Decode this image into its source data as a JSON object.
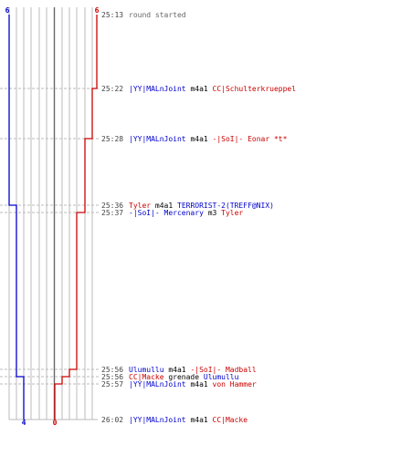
{
  "colors": {
    "team_blue": "#0000cc",
    "team_red": "#cc0000",
    "grid": "#bbbbbb",
    "center_line": "#666666",
    "dashed": "#bbbbbb",
    "time_text": "#444444"
  },
  "scale": {
    "blue_top": "6",
    "red_top": "6",
    "blue_bottom": "4",
    "red_bottom": "0"
  },
  "events": [
    {
      "time": "25:13",
      "parts": [
        {
          "text": "round started",
          "style": "gray"
        }
      ]
    },
    {
      "time": "25:22",
      "parts": [
        {
          "text": "|YY|MALnJoint",
          "style": "blue"
        },
        {
          "text": " m4a1 ",
          "style": "black"
        },
        {
          "text": "CC|Schulterkrueppel",
          "style": "red"
        }
      ]
    },
    {
      "time": "25:28",
      "parts": [
        {
          "text": "|YY|MALnJoint",
          "style": "blue"
        },
        {
          "text": " m4a1 ",
          "style": "black"
        },
        {
          "text": "-|SoI|- Eonar *t*",
          "style": "red"
        }
      ]
    },
    {
      "time": "25:36",
      "parts": [
        {
          "text": "Tyler",
          "style": "red"
        },
        {
          "text": " m4a1 ",
          "style": "black"
        },
        {
          "text": "TERRORIST-2(TREFF@NIX)",
          "style": "blue"
        }
      ]
    },
    {
      "time": "25:37",
      "parts": [
        {
          "text": "-|SoI|- Mercenary",
          "style": "blue"
        },
        {
          "text": " m3 ",
          "style": "black"
        },
        {
          "text": "Tyler",
          "style": "red"
        }
      ]
    },
    {
      "time": "25:56",
      "parts": [
        {
          "text": "Ulumullu",
          "style": "blue"
        },
        {
          "text": " m4a1 ",
          "style": "black"
        },
        {
          "text": "-|SoI|- Madball",
          "style": "red"
        }
      ]
    },
    {
      "time": "25:56",
      "parts": [
        {
          "text": "CC|Macke",
          "style": "red"
        },
        {
          "text": " grenade ",
          "style": "black"
        },
        {
          "text": "Ulumullu",
          "style": "blue"
        }
      ]
    },
    {
      "time": "25:57",
      "parts": [
        {
          "text": "|YY|MALnJoint",
          "style": "blue"
        },
        {
          "text": " m4a1 ",
          "style": "black"
        },
        {
          "text": "von Hammer",
          "style": "red"
        }
      ]
    },
    {
      "time": "26:02",
      "parts": [
        {
          "text": "|YY|MALnJoint",
          "style": "blue"
        },
        {
          "text": " m4a1 ",
          "style": "black"
        },
        {
          "text": "CC|Macke",
          "style": "red"
        }
      ]
    }
  ]
}
